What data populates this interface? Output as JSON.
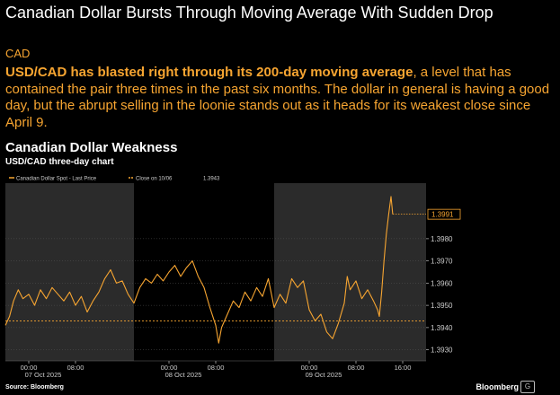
{
  "article": {
    "headline": "Canadian Dollar Bursts Through Moving Average With Sudden Drop",
    "tag": "CAD",
    "summary_bold": "USD/CAD has blasted right through its 200-day moving average",
    "summary_rest": ", a level that has contained the pair three times in the past six months. The dollar in general is having a good day, but the abrupt selling in the loonie stands out as it heads for its weakest close since April 9.",
    "source": "Source: Bloomberg",
    "brand": "Bloomberg",
    "brand_icon_glyph": "G"
  },
  "colors": {
    "background": "#000000",
    "accent": "#f7a531",
    "highlight_band": "#2b2b2b"
  },
  "chart_data": {
    "type": "line",
    "title": "Canadian Dollar Weakness",
    "subtitle": "USD/CAD three-day chart",
    "legend": [
      {
        "label": "Canadian Dollar Spot - Last Price",
        "style": "solid"
      },
      {
        "label": "Close on 10/06",
        "style": "dashed",
        "value_label": "1.3943"
      }
    ],
    "legend_placement": "top-left",
    "last_value_label": "1.3991",
    "reference_line": {
      "label": "Close on 10/06",
      "value": 1.3943
    },
    "ylim": [
      1.3925,
      1.4005
    ],
    "y_ticks": [
      1.393,
      1.394,
      1.395,
      1.396,
      1.397,
      1.398
    ],
    "y_tick_labels": [
      "1.3930",
      "1.3940",
      "1.3950",
      "1.3960",
      "1.3970",
      "1.3980"
    ],
    "x_range_hours": [
      -4,
      68
    ],
    "x_ticks": [
      {
        "hour": 0,
        "time": "00:00",
        "date": "07 Oct 2025"
      },
      {
        "hour": 8,
        "time": "08:00",
        "date": ""
      },
      {
        "hour": 24,
        "time": "00:00",
        "date": "08 Oct 2025"
      },
      {
        "hour": 32,
        "time": "08:00",
        "date": ""
      },
      {
        "hour": 48,
        "time": "00:00",
        "date": "09 Oct 2025"
      },
      {
        "hour": 56,
        "time": "08:00",
        "date": ""
      },
      {
        "hour": 64,
        "time": "16:00",
        "date": ""
      }
    ],
    "day_bands_hours": [
      [
        -4,
        18
      ],
      [
        42,
        68
      ]
    ],
    "grid": "horizontal-dotted",
    "series": [
      {
        "name": "Canadian Dollar Spot - Last Price",
        "points": [
          [
            -4,
            1.3941
          ],
          [
            -3.3,
            1.3945
          ],
          [
            -2.6,
            1.3952
          ],
          [
            -1.8,
            1.3957
          ],
          [
            -1,
            1.3953
          ],
          [
            0,
            1.3955
          ],
          [
            1,
            1.395
          ],
          [
            2,
            1.3957
          ],
          [
            3,
            1.3953
          ],
          [
            4,
            1.3958
          ],
          [
            5,
            1.3955
          ],
          [
            6,
            1.3952
          ],
          [
            7,
            1.3956
          ],
          [
            8,
            1.395
          ],
          [
            9,
            1.3954
          ],
          [
            10,
            1.3947
          ],
          [
            11,
            1.3952
          ],
          [
            12,
            1.3956
          ],
          [
            13,
            1.3962
          ],
          [
            14,
            1.3966
          ],
          [
            15,
            1.396
          ],
          [
            16,
            1.3961
          ],
          [
            17,
            1.3955
          ],
          [
            18,
            1.3951
          ],
          [
            19,
            1.3958
          ],
          [
            20,
            1.3962
          ],
          [
            21,
            1.396
          ],
          [
            22,
            1.3964
          ],
          [
            23,
            1.3961
          ],
          [
            24,
            1.3965
          ],
          [
            25,
            1.3968
          ],
          [
            26,
            1.3963
          ],
          [
            27,
            1.3967
          ],
          [
            28,
            1.397
          ],
          [
            29,
            1.3963
          ],
          [
            30,
            1.3958
          ],
          [
            31,
            1.3949
          ],
          [
            32,
            1.3941
          ],
          [
            32.5,
            1.3933
          ],
          [
            33,
            1.394
          ],
          [
            34,
            1.3946
          ],
          [
            35,
            1.3952
          ],
          [
            36,
            1.3949
          ],
          [
            37,
            1.3956
          ],
          [
            38,
            1.3952
          ],
          [
            39,
            1.3958
          ],
          [
            40,
            1.3954
          ],
          [
            41,
            1.3962
          ],
          [
            42,
            1.3949
          ],
          [
            43,
            1.3955
          ],
          [
            44,
            1.3951
          ],
          [
            45,
            1.3962
          ],
          [
            46,
            1.3958
          ],
          [
            47,
            1.3961
          ],
          [
            48,
            1.3948
          ],
          [
            49,
            1.3943
          ],
          [
            50,
            1.3946
          ],
          [
            51,
            1.3938
          ],
          [
            52,
            1.3935
          ],
          [
            53,
            1.3942
          ],
          [
            54,
            1.3951
          ],
          [
            54.5,
            1.3963
          ],
          [
            55,
            1.3957
          ],
          [
            56,
            1.3961
          ],
          [
            57,
            1.3953
          ],
          [
            58,
            1.3957
          ],
          [
            59,
            1.3952
          ],
          [
            59.7,
            1.3948
          ],
          [
            60,
            1.3945
          ],
          [
            60.4,
            1.3956
          ],
          [
            60.8,
            1.397
          ],
          [
            61.2,
            1.3982
          ],
          [
            61.6,
            1.3991
          ],
          [
            62,
            1.3999
          ],
          [
            62.3,
            1.3991
          ]
        ]
      }
    ]
  }
}
